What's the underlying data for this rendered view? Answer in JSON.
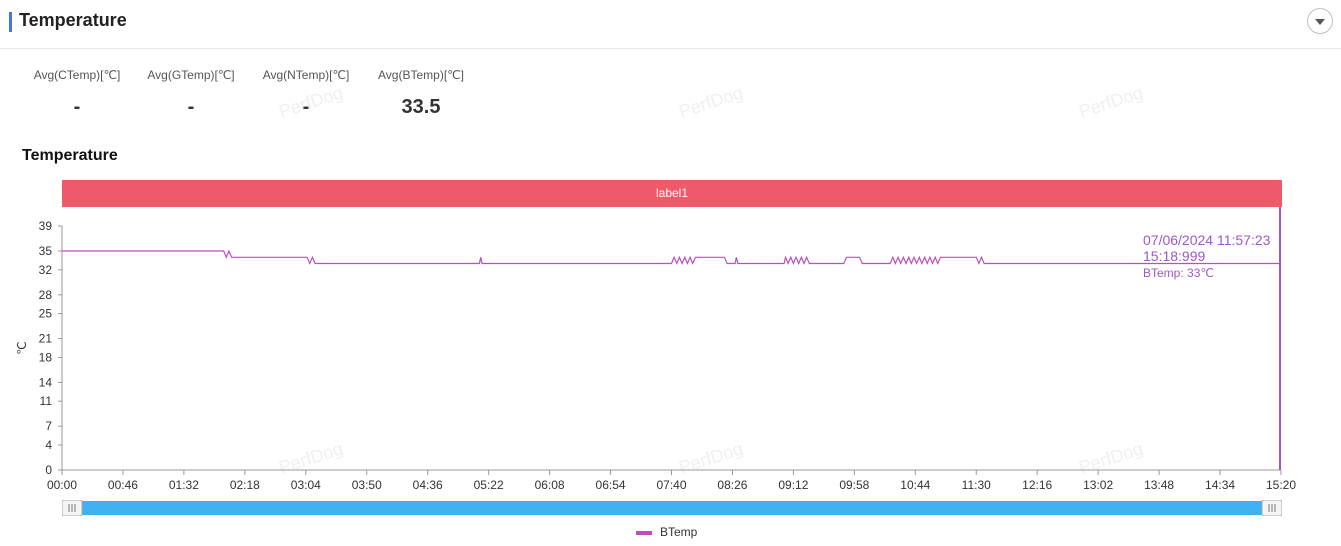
{
  "section": {
    "title": "Temperature"
  },
  "stats": [
    {
      "label": "Avg(CTemp)[℃]",
      "value": "-"
    },
    {
      "label": "Avg(GTemp)[℃]",
      "value": "-"
    },
    {
      "label": "Avg(NTemp)[℃]",
      "value": "-"
    },
    {
      "label": "Avg(BTemp)[℃]",
      "value": "33.5"
    }
  ],
  "watermark": "PerfDog",
  "tooltip": {
    "datetime": "07/06/2024 11:57:23",
    "time": "15:18:999",
    "value": "BTemp: 33℃"
  },
  "colors": {
    "accent": "#3b7be0",
    "band": "#ef5a6a",
    "series": "#bd4fbd",
    "cursor": "#9b59c9",
    "slider": "#3fb0f0"
  },
  "chart_data": {
    "type": "line",
    "title": "Temperature",
    "band_label": "label1",
    "ylabel": "℃",
    "ylim": [
      0,
      39
    ],
    "y_ticks": [
      0,
      4,
      7,
      11,
      14,
      18,
      21,
      25,
      28,
      32,
      35,
      39
    ],
    "x_ticks": [
      "00:00",
      "00:46",
      "01:32",
      "02:18",
      "03:04",
      "03:50",
      "04:36",
      "05:22",
      "06:08",
      "06:54",
      "07:40",
      "08:26",
      "09:12",
      "09:58",
      "10:44",
      "11:30",
      "12:16",
      "13:02",
      "13:48",
      "14:34",
      "15:20"
    ],
    "xlim_seconds": [
      0,
      920
    ],
    "legend_position": "bottom",
    "series": [
      {
        "name": "BTemp",
        "points": [
          [
            0,
            35
          ],
          [
            122,
            35
          ],
          [
            124,
            34
          ],
          [
            126,
            35
          ],
          [
            128,
            34
          ],
          [
            185,
            34
          ],
          [
            187,
            33
          ],
          [
            189,
            34
          ],
          [
            191,
            33
          ],
          [
            315,
            33
          ],
          [
            316,
            34
          ],
          [
            317,
            33
          ],
          [
            460,
            33
          ],
          [
            462,
            34
          ],
          [
            464,
            33
          ],
          [
            466,
            34
          ],
          [
            468,
            33
          ],
          [
            470,
            34
          ],
          [
            472,
            33
          ],
          [
            474,
            34
          ],
          [
            476,
            33
          ],
          [
            478,
            34
          ],
          [
            480,
            34
          ],
          [
            500,
            34
          ],
          [
            502,
            33
          ],
          [
            508,
            33
          ],
          [
            509,
            34
          ],
          [
            510,
            33
          ],
          [
            545,
            33
          ],
          [
            546,
            34
          ],
          [
            548,
            33
          ],
          [
            550,
            34
          ],
          [
            552,
            33
          ],
          [
            554,
            34
          ],
          [
            556,
            33
          ],
          [
            558,
            34
          ],
          [
            560,
            33
          ],
          [
            562,
            34
          ],
          [
            564,
            33
          ],
          [
            590,
            33
          ],
          [
            592,
            34
          ],
          [
            602,
            34
          ],
          [
            604,
            33
          ],
          [
            625,
            33
          ],
          [
            627,
            34
          ],
          [
            629,
            33
          ],
          [
            631,
            34
          ],
          [
            633,
            33
          ],
          [
            635,
            34
          ],
          [
            637,
            33
          ],
          [
            639,
            34
          ],
          [
            641,
            33
          ],
          [
            643,
            34
          ],
          [
            645,
            33
          ],
          [
            647,
            34
          ],
          [
            649,
            33
          ],
          [
            651,
            34
          ],
          [
            653,
            33
          ],
          [
            655,
            34
          ],
          [
            657,
            33
          ],
          [
            659,
            34
          ],
          [
            661,
            33
          ],
          [
            663,
            34
          ],
          [
            665,
            34
          ],
          [
            690,
            34
          ],
          [
            692,
            33
          ],
          [
            694,
            34
          ],
          [
            696,
            33
          ],
          [
            920,
            33
          ]
        ]
      }
    ]
  }
}
